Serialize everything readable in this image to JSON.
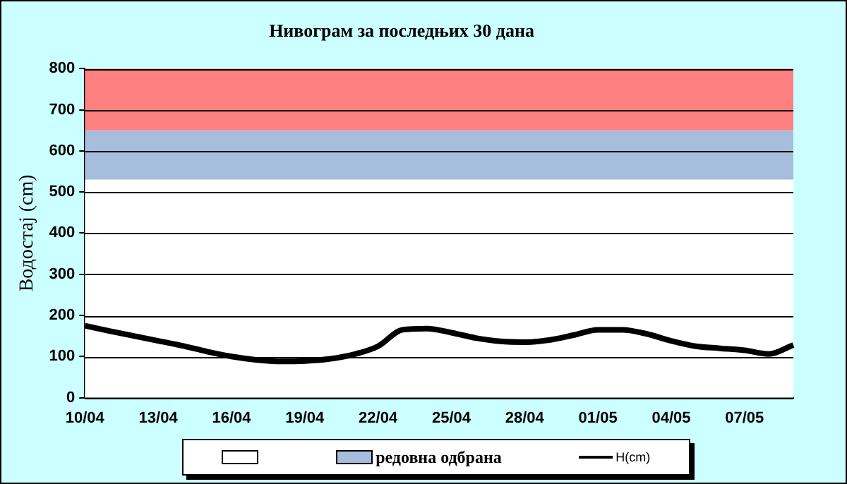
{
  "chart_data": {
    "type": "line",
    "title": "Нивограм за последњих 30 дана",
    "ylabel": "Водостај (cm)",
    "categories": [
      "10/04",
      null,
      null,
      "13/04",
      null,
      null,
      "16/04",
      null,
      null,
      "19/04",
      null,
      null,
      "22/04",
      null,
      null,
      "25/04",
      null,
      null,
      "28/04",
      null,
      null,
      "01/05",
      null,
      null,
      "04/05",
      null,
      null,
      "07/05",
      null,
      null
    ],
    "series": [
      {
        "name": "H(cm)",
        "color": "#000000",
        "values": [
          175,
          162,
          150,
          138,
          126,
          112,
          100,
          92,
          88,
          89,
          94,
          105,
          125,
          165,
          168,
          158,
          145,
          137,
          135,
          140,
          152,
          165,
          165,
          155,
          138,
          125,
          120,
          115,
          106,
          128
        ]
      }
    ],
    "ylim": [
      0,
      800
    ],
    "yticks": [
      0,
      100,
      200,
      300,
      400,
      500,
      600,
      700,
      800
    ],
    "grid": "y",
    "legend": "bottom",
    "marker": "none",
    "line_style": "solid",
    "bands": [
      {
        "axis": "y",
        "from": 0,
        "to": 530,
        "color": "#ffffff"
      },
      {
        "axis": "y",
        "from": 530,
        "to": 650,
        "label": "редовна одбрана",
        "color": "#a6bddb"
      },
      {
        "axis": "y",
        "from": 650,
        "to": 800,
        "color": "#ff8080"
      }
    ]
  }
}
